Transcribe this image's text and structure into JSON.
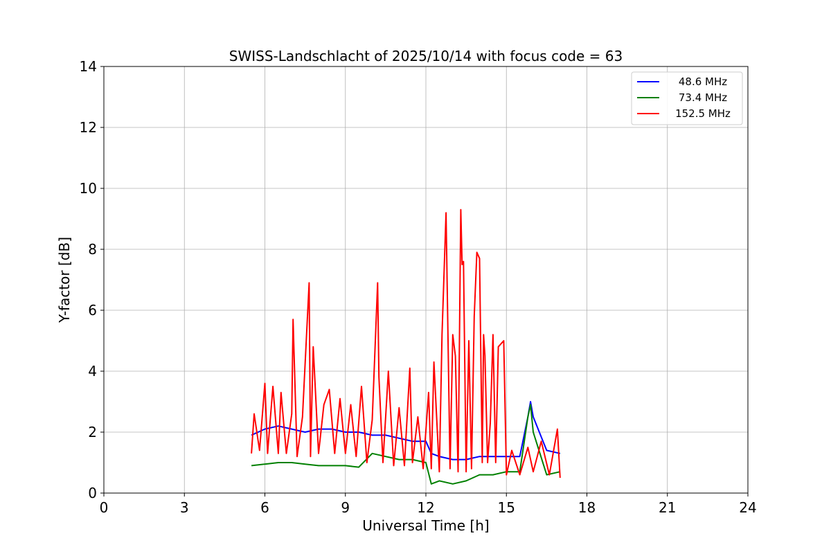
{
  "chart_data": {
    "type": "line",
    "title": "SWISS-Landschlacht of 2025/10/14 with focus code = 63",
    "xlabel": "Universal Time [h]",
    "ylabel": "Y-factor [dB]",
    "xlim": [
      0,
      24
    ],
    "ylim": [
      0,
      14
    ],
    "xticks": [
      0,
      3,
      6,
      9,
      12,
      15,
      18,
      21,
      24
    ],
    "yticks": [
      0,
      2,
      4,
      6,
      8,
      10,
      12,
      14
    ],
    "grid": true,
    "legend_position": "top-right",
    "series": [
      {
        "name": " 48.6 MHz",
        "color": "#0000ff",
        "x": [
          5.5,
          6.0,
          6.5,
          7.0,
          7.5,
          8.0,
          8.5,
          9.0,
          9.5,
          10.0,
          10.5,
          11.0,
          11.5,
          12.0,
          12.2,
          12.5,
          13.0,
          13.5,
          14.0,
          14.5,
          15.0,
          15.5,
          15.8,
          15.9,
          16.0,
          16.5,
          17.0
        ],
        "values": [
          1.9,
          2.1,
          2.2,
          2.1,
          2.0,
          2.1,
          2.1,
          2.0,
          2.0,
          1.9,
          1.9,
          1.8,
          1.7,
          1.7,
          1.3,
          1.2,
          1.1,
          1.1,
          1.2,
          1.2,
          1.2,
          1.2,
          2.5,
          3.0,
          2.5,
          1.4,
          1.3
        ]
      },
      {
        "name": " 73.4 MHz",
        "color": "#008000",
        "x": [
          5.5,
          6.0,
          6.5,
          7.0,
          7.5,
          8.0,
          8.5,
          9.0,
          9.5,
          10.0,
          10.5,
          11.0,
          11.5,
          12.0,
          12.2,
          12.5,
          13.0,
          13.5,
          14.0,
          14.5,
          15.0,
          15.5,
          15.8,
          15.9,
          16.0,
          16.5,
          17.0
        ],
        "values": [
          0.9,
          0.95,
          1.0,
          1.0,
          0.95,
          0.9,
          0.9,
          0.9,
          0.85,
          1.3,
          1.2,
          1.1,
          1.1,
          1.0,
          0.3,
          0.4,
          0.3,
          0.4,
          0.6,
          0.6,
          0.7,
          0.7,
          2.5,
          2.9,
          2.0,
          0.6,
          0.7
        ]
      },
      {
        "name": "152.5 MHz",
        "color": "#ff0000",
        "x": [
          5.5,
          5.6,
          5.8,
          6.0,
          6.1,
          6.3,
          6.5,
          6.6,
          6.8,
          7.0,
          7.05,
          7.2,
          7.4,
          7.65,
          7.7,
          7.8,
          8.0,
          8.2,
          8.4,
          8.6,
          8.8,
          9.0,
          9.2,
          9.4,
          9.6,
          9.8,
          10.0,
          10.2,
          10.25,
          10.4,
          10.6,
          10.8,
          11.0,
          11.2,
          11.4,
          11.5,
          11.7,
          11.9,
          12.1,
          12.2,
          12.3,
          12.5,
          12.6,
          12.75,
          12.9,
          13.0,
          13.1,
          13.2,
          13.3,
          13.35,
          13.4,
          13.5,
          13.6,
          13.7,
          13.8,
          13.9,
          14.0,
          14.1,
          14.15,
          14.2,
          14.3,
          14.4,
          14.5,
          14.6,
          14.7,
          14.9,
          15.0,
          15.2,
          15.5,
          15.8,
          16.0,
          16.3,
          16.6,
          16.9,
          17.0
        ],
        "values": [
          1.3,
          2.6,
          1.4,
          3.6,
          1.3,
          3.5,
          1.3,
          3.3,
          1.3,
          2.6,
          5.7,
          1.2,
          2.5,
          6.9,
          1.2,
          4.8,
          1.3,
          2.9,
          3.4,
          1.3,
          3.1,
          1.3,
          2.9,
          1.2,
          3.5,
          1.0,
          2.4,
          6.9,
          3.8,
          1.0,
          4.0,
          0.9,
          2.8,
          0.9,
          4.1,
          1.0,
          2.5,
          0.8,
          3.3,
          0.8,
          4.3,
          0.7,
          5.2,
          9.2,
          0.8,
          5.2,
          4.5,
          0.7,
          9.3,
          7.5,
          7.6,
          0.7,
          5.0,
          0.8,
          5.8,
          7.9,
          7.7,
          1.0,
          5.2,
          4.5,
          1.0,
          2.3,
          5.2,
          1.0,
          4.8,
          5.0,
          0.6,
          1.4,
          0.6,
          1.5,
          0.7,
          1.7,
          0.6,
          2.1,
          0.5
        ]
      }
    ]
  }
}
